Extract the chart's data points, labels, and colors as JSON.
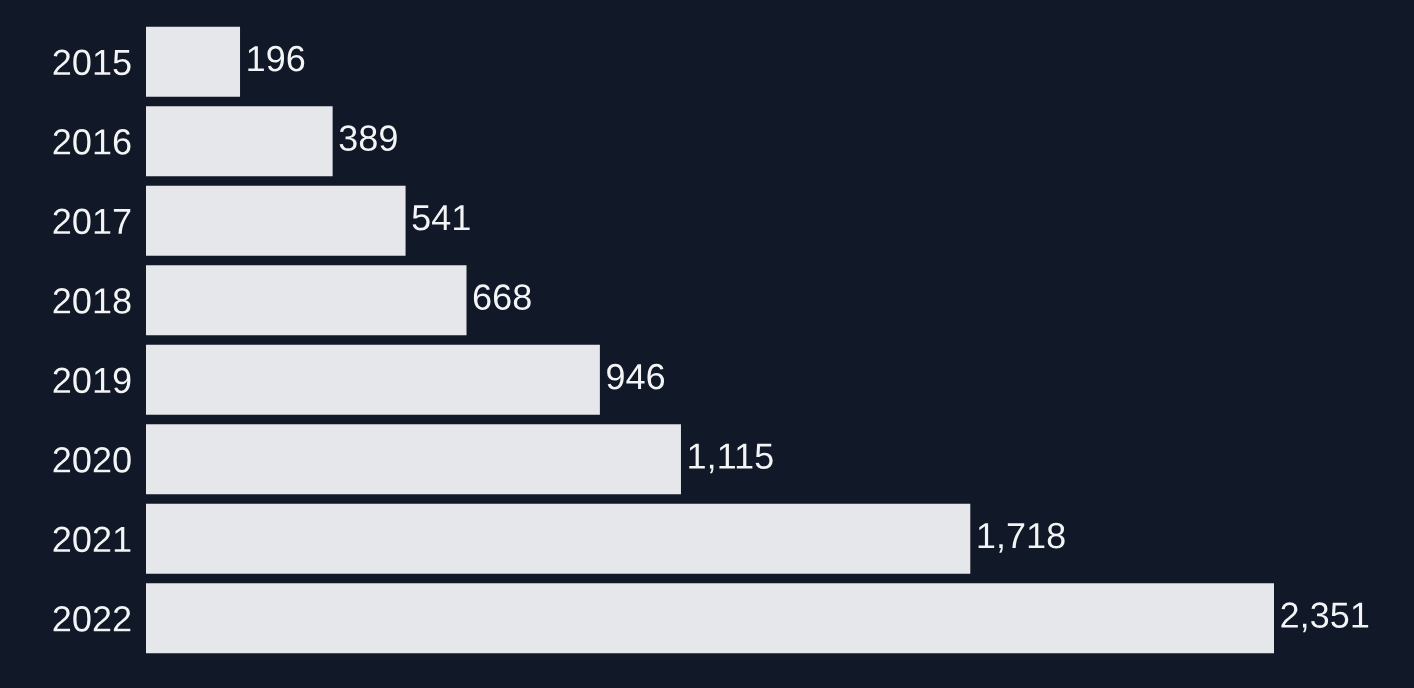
{
  "chart_data": {
    "type": "bar",
    "orientation": "horizontal",
    "categories": [
      "2015",
      "2016",
      "2017",
      "2018",
      "2019",
      "2020",
      "2021",
      "2022"
    ],
    "values": [
      196,
      389,
      541,
      668,
      946,
      1115,
      1718,
      2351
    ],
    "color": "#e5e7eb",
    "value_labels": [
      "196",
      "389",
      "541",
      "668",
      "946",
      "1,115",
      "1,718",
      "2,351"
    ],
    "grid": false,
    "legend": false
  }
}
